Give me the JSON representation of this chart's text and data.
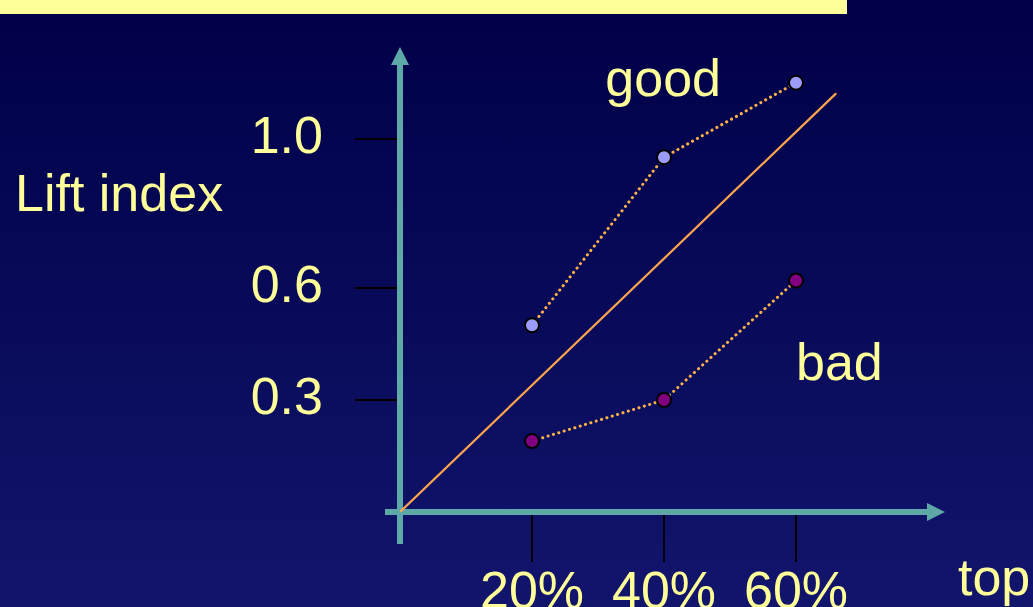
{
  "chart_data": {
    "type": "line",
    "xlabel": "top",
    "ylabel": "Lift index",
    "xlim": [
      0,
      80
    ],
    "xticks": [
      {
        "value": 20,
        "label": "20%"
      },
      {
        "value": 40,
        "label": "40%"
      },
      {
        "value": 60,
        "label": "60%"
      }
    ],
    "ylim": [
      0,
      1.2
    ],
    "yticks": [
      0.3,
      0.6,
      {
        "value": 1,
        "label": "1.0"
      }
    ],
    "x": [
      20,
      40,
      60
    ],
    "marker": "circle",
    "line_style": "dotted",
    "series": [
      {
        "name": "good",
        "color": "#ffb347",
        "colors": [
          "#9c9cf8",
          "#9c9cf8",
          "#9c9cf8"
        ],
        "values": [
          0.5,
          0.95,
          1.15
        ]
      },
      {
        "name": "bad",
        "color": "#ffb347",
        "colors": [
          "#800080",
          "#800080",
          "#800080"
        ],
        "values": [
          0.19,
          0.3,
          0.62
        ]
      },
      {
        "type": "line",
        "color": "#ffa64d",
        "x": [
          0,
          66
        ],
        "values": [
          0,
          1.12
        ],
        "marker": "none",
        "line_style": "solid"
      }
    ]
  }
}
